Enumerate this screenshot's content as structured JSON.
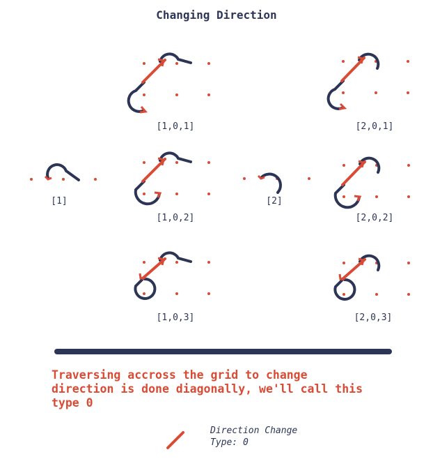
{
  "title": "Changing Direction",
  "colors": {
    "ink": "#2d3557",
    "accent": "#d94b34"
  },
  "captions": {
    "c1": "[1]",
    "c2": "[2]",
    "c101": "[1,0,1]",
    "c102": "[1,0,2]",
    "c103": "[1,0,3]",
    "c201": "[2,0,1]",
    "c202": "[2,0,2]",
    "c203": "[2,0,3]"
  },
  "description": "Traversing accross the grid to change\ndirection is done diagonally, we'll call this\ntype 0",
  "legend": {
    "label": "Direction Change\nType: 0"
  }
}
